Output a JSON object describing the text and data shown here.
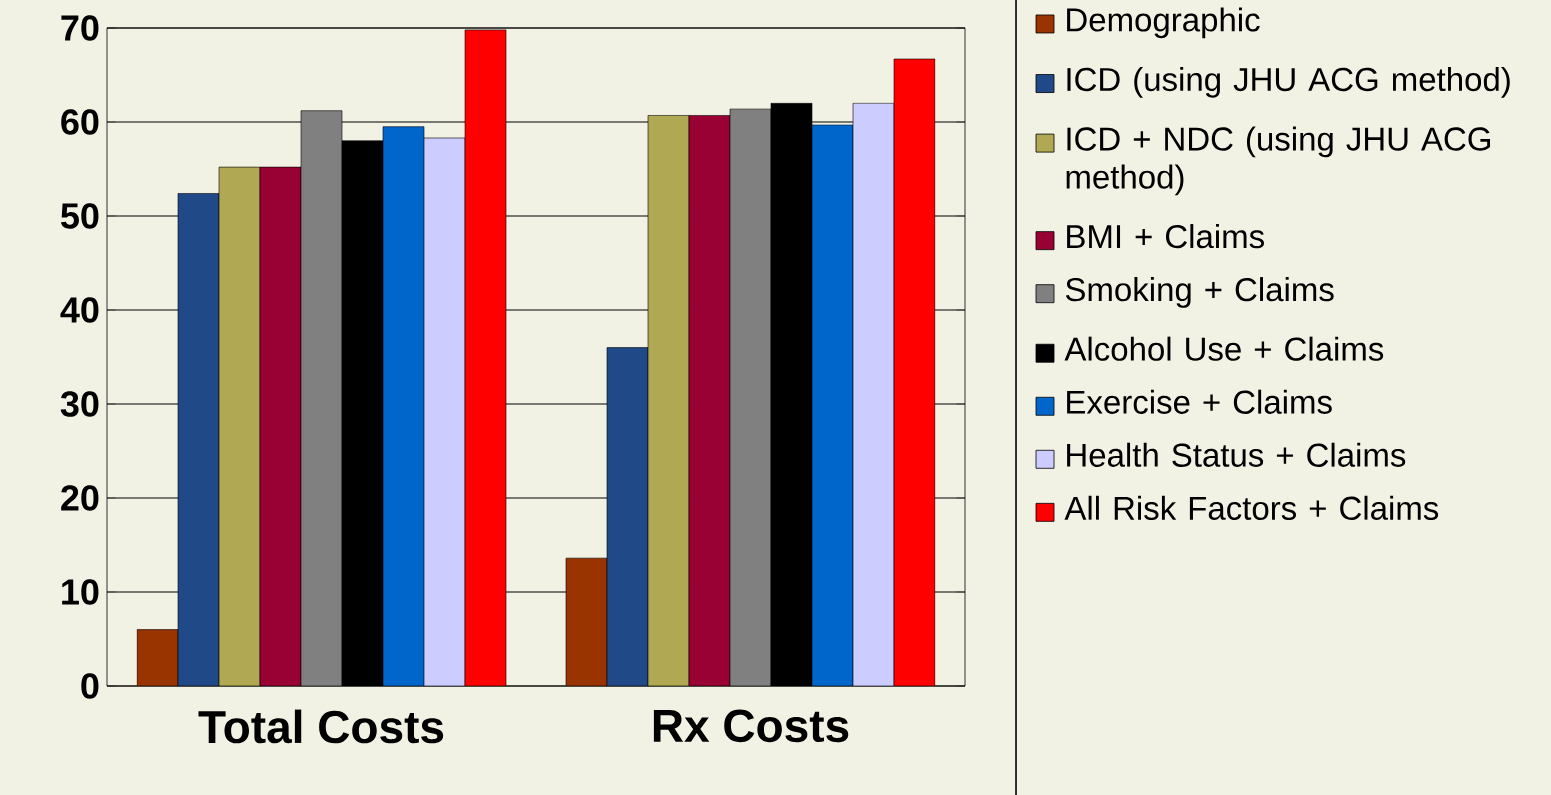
{
  "chart_data": {
    "type": "bar",
    "categories": [
      "Total Costs",
      "Rx Costs"
    ],
    "series": [
      {
        "name": "Demographic",
        "color": "#993300",
        "values": [
          6,
          13.6
        ]
      },
      {
        "name": "ICD  (using JHU ACG method)",
        "color": "#1f4a87",
        "values": [
          52.4,
          36
        ]
      },
      {
        "name": "ICD + NDC  (using JHU ACG method)",
        "color": "#b0a852",
        "values": [
          55.2,
          60.7
        ]
      },
      {
        "name": "BMI + Claims",
        "color": "#990033",
        "values": [
          55.2,
          60.7
        ]
      },
      {
        "name": "Smoking + Claims",
        "color": "#808080",
        "values": [
          61.2,
          61.4
        ]
      },
      {
        "name": "Alcohol Use + Claims",
        "color": "#000000",
        "values": [
          58,
          62
        ]
      },
      {
        "name": "Exercise + Claims",
        "color": "#0066cc",
        "values": [
          59.5,
          59.7
        ]
      },
      {
        "name": "Health Status + Claims",
        "color": "#ccccff",
        "values": [
          58.3,
          62
        ]
      },
      {
        "name": "All Risk Factors + Claims",
        "color": "#ff0000",
        "values": [
          69.8,
          66.7
        ]
      }
    ],
    "ylim": [
      0,
      70
    ],
    "yticks": [
      0,
      10,
      20,
      30,
      40,
      50,
      60,
      70
    ],
    "grid": "y",
    "legend": "right"
  }
}
